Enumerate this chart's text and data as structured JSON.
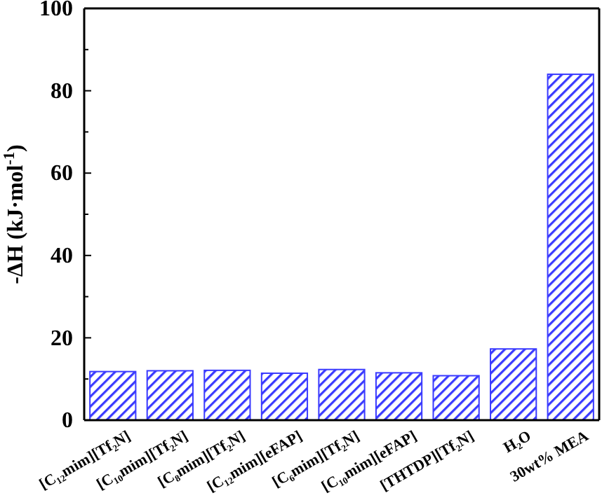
{
  "chart_data": {
    "type": "bar",
    "ylabel": "-ΔH (kJ·mol$^{-1}$)",
    "categories": [
      "[C₁₂mim][Tf₂N]",
      "[C₁₀mim][Tf₂N]",
      "[C₈mim][Tf₂N]",
      "[C₁₂mim][eFAP]",
      "[C₆mim][Tf₂N]",
      "[C₁₀mim][eFAP]",
      "[THTDP][Tf₂N]",
      "H₂O",
      "30wt% MEA"
    ],
    "values": [
      11.8,
      12.0,
      12.1,
      11.4,
      12.3,
      11.5,
      10.8,
      17.3,
      84.0
    ],
    "color": "#3a3aff",
    "ylim": [
      0,
      100
    ],
    "yticks": [
      0,
      {
        "value": 10,
        "label": null
      },
      20,
      {
        "value": 30,
        "label": null
      },
      40,
      {
        "value": 50,
        "label": null
      },
      60,
      {
        "value": 70,
        "label": null
      },
      80,
      {
        "value": 90,
        "label": null
      },
      100
    ],
    "grid": false
  }
}
